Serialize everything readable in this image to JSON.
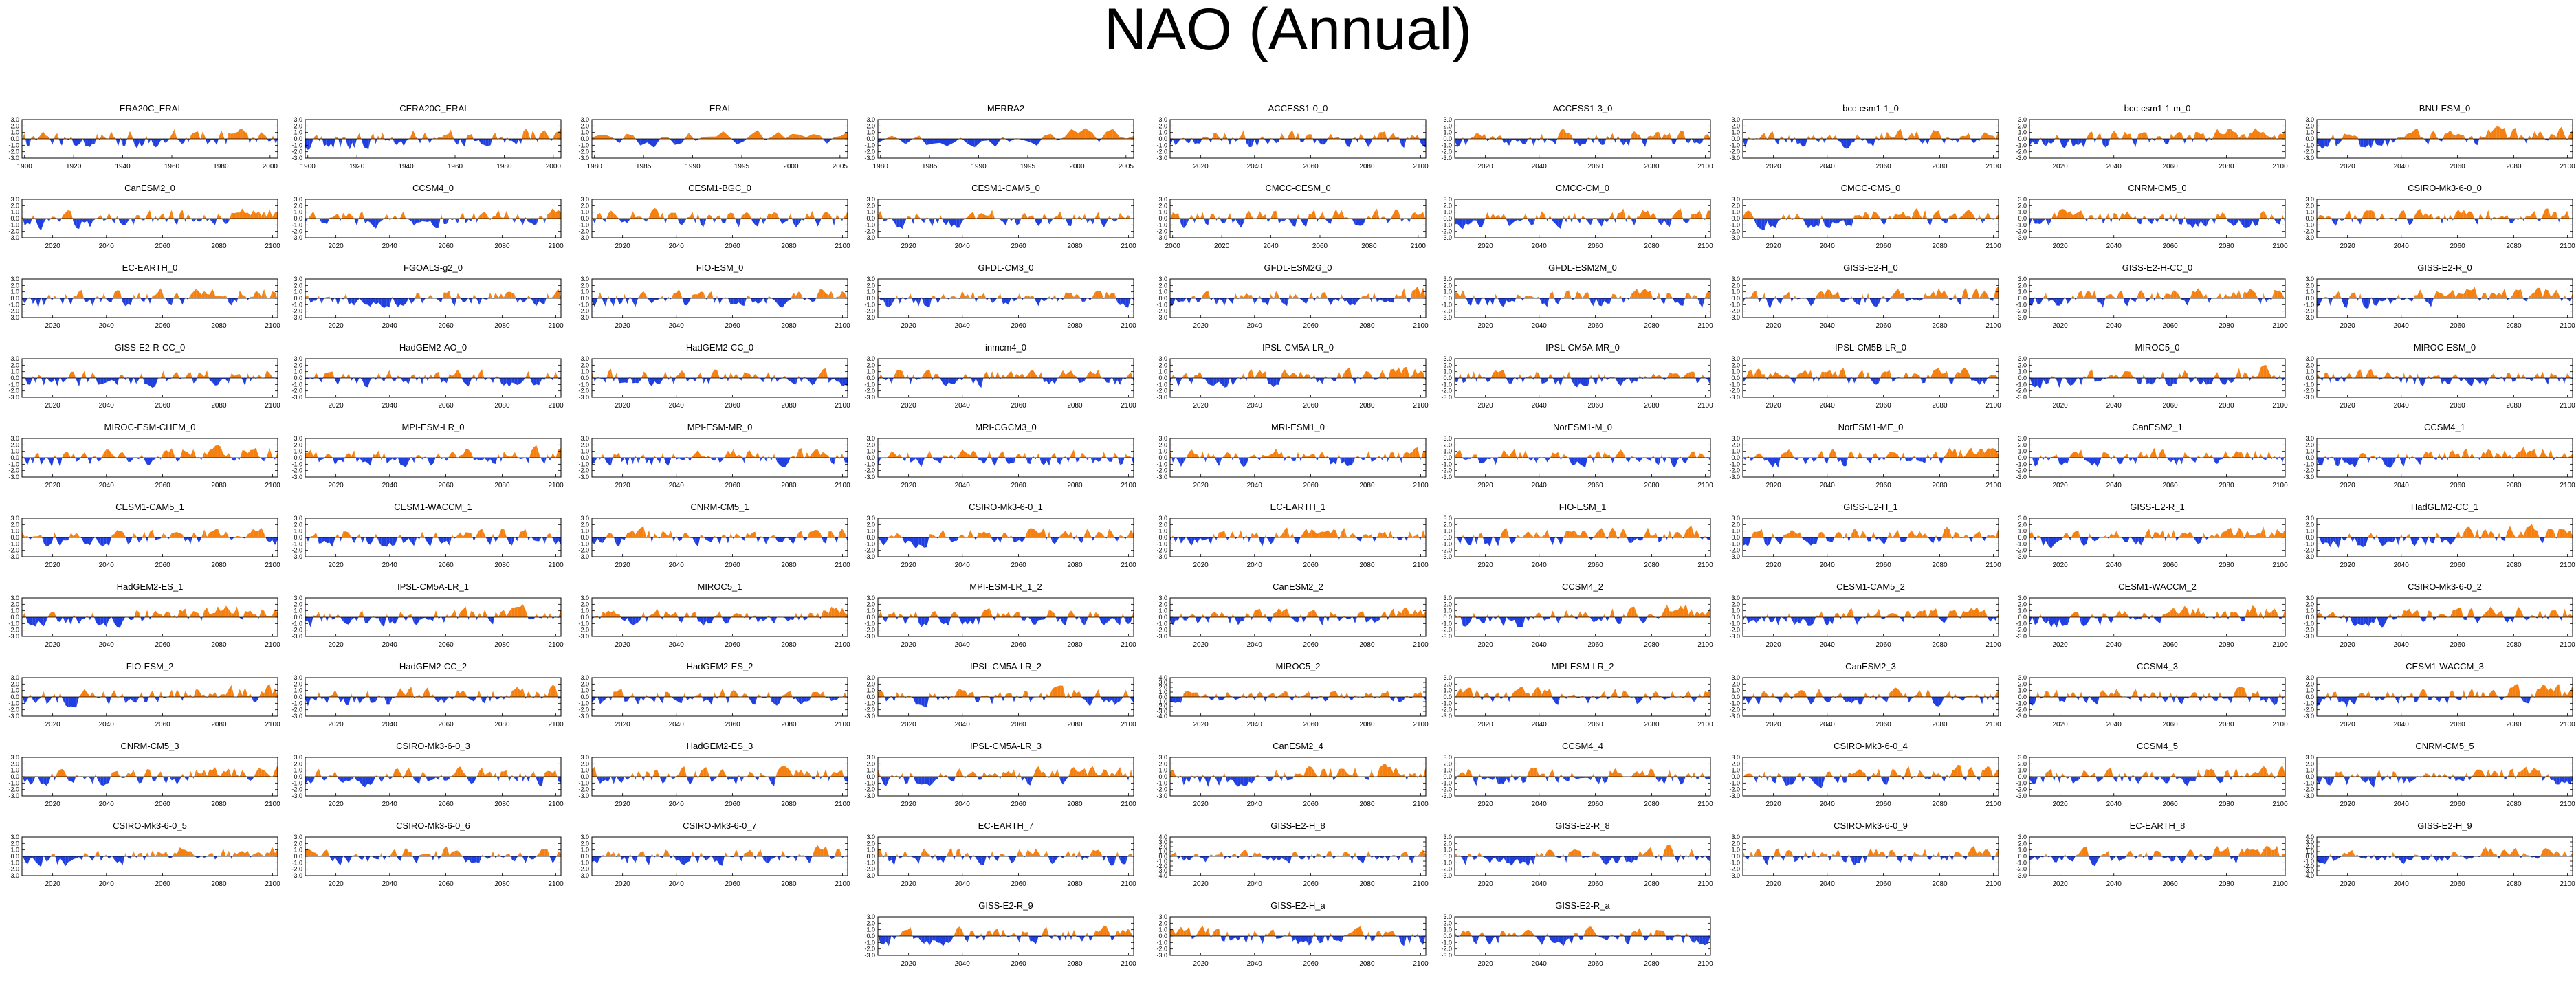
{
  "title": "NAO (Annual)",
  "colors": {
    "positive": "#f5800f",
    "negative": "#1f3fe0",
    "axis": "#000000"
  },
  "chart_data": {
    "type": "area",
    "grid": false,
    "ylim": [
      -3.0,
      3.0
    ],
    "yticks": [
      "3.0",
      "2.0",
      "1.0",
      "0.0",
      "-1.0",
      "-2.0",
      "-3.0"
    ],
    "yticks_wide": [
      "4.0",
      "3.0",
      "2.0",
      "1.0",
      "0.0",
      "-1.0",
      "-2.0",
      "-3.0",
      "-4.0"
    ],
    "xticks_future": [
      "2020",
      "2040",
      "2060",
      "2080",
      "2100"
    ],
    "xticks_future_2000": [
      "2000",
      "2020",
      "2040",
      "2060",
      "2080",
      "2100"
    ],
    "xticks_20c": [
      "1900",
      "1920",
      "1940",
      "1960",
      "1980",
      "2000"
    ],
    "xticks_erai": [
      "1980",
      "1985",
      "1990",
      "1995",
      "2000",
      "2005"
    ],
    "xticks_merra": [
      "1980",
      "1985",
      "1990",
      "1995",
      "2000",
      "2005"
    ],
    "panels": [
      {
        "name": "ERA20C_ERAI",
        "x": "20c"
      },
      {
        "name": "CERA20C_ERAI",
        "x": "20c"
      },
      {
        "name": "ERAI",
        "x": "erai"
      },
      {
        "name": "MERRA2",
        "x": "merra"
      },
      {
        "name": "ACCESS1-0_0",
        "x": "f"
      },
      {
        "name": "ACCESS1-3_0",
        "x": "f"
      },
      {
        "name": "bcc-csm1-1_0",
        "x": "f"
      },
      {
        "name": "bcc-csm1-1-m_0",
        "x": "f"
      },
      {
        "name": "BNU-ESM_0",
        "x": "f"
      },
      {
        "name": "CanESM2_0",
        "x": "f"
      },
      {
        "name": "CCSM4_0",
        "x": "f"
      },
      {
        "name": "CESM1-BGC_0",
        "x": "f"
      },
      {
        "name": "CESM1-CAM5_0",
        "x": "f"
      },
      {
        "name": "CMCC-CESM_0",
        "x": "f2000"
      },
      {
        "name": "CMCC-CM_0",
        "x": "f"
      },
      {
        "name": "CMCC-CMS_0",
        "x": "f"
      },
      {
        "name": "CNRM-CM5_0",
        "x": "f"
      },
      {
        "name": "CSIRO-Mk3-6-0_0",
        "x": "f"
      },
      {
        "name": "EC-EARTH_0",
        "x": "f"
      },
      {
        "name": "FGOALS-g2_0",
        "x": "f"
      },
      {
        "name": "FIO-ESM_0",
        "x": "f"
      },
      {
        "name": "GFDL-CM3_0",
        "x": "f"
      },
      {
        "name": "GFDL-ESM2G_0",
        "x": "f"
      },
      {
        "name": "GFDL-ESM2M_0",
        "x": "f"
      },
      {
        "name": "GISS-E2-H_0",
        "x": "f"
      },
      {
        "name": "GISS-E2-H-CC_0",
        "x": "f"
      },
      {
        "name": "GISS-E2-R_0",
        "x": "f"
      },
      {
        "name": "GISS-E2-R-CC_0",
        "x": "f"
      },
      {
        "name": "HadGEM2-AO_0",
        "x": "f"
      },
      {
        "name": "HadGEM2-CC_0",
        "x": "f"
      },
      {
        "name": "inmcm4_0",
        "x": "f"
      },
      {
        "name": "IPSL-CM5A-LR_0",
        "x": "f"
      },
      {
        "name": "IPSL-CM5A-MR_0",
        "x": "f"
      },
      {
        "name": "IPSL-CM5B-LR_0",
        "x": "f"
      },
      {
        "name": "MIROC5_0",
        "x": "f"
      },
      {
        "name": "MIROC-ESM_0",
        "x": "f"
      },
      {
        "name": "MIROC-ESM-CHEM_0",
        "x": "f"
      },
      {
        "name": "MPI-ESM-LR_0",
        "x": "f"
      },
      {
        "name": "MPI-ESM-MR_0",
        "x": "f"
      },
      {
        "name": "MRI-CGCM3_0",
        "x": "f"
      },
      {
        "name": "MRI-ESM1_0",
        "x": "f"
      },
      {
        "name": "NorESM1-M_0",
        "x": "f"
      },
      {
        "name": "NorESM1-ME_0",
        "x": "f"
      },
      {
        "name": "CanESM2_1",
        "x": "f"
      },
      {
        "name": "CCSM4_1",
        "x": "f"
      },
      {
        "name": "CESM1-CAM5_1",
        "x": "f"
      },
      {
        "name": "CESM1-WACCM_1",
        "x": "f"
      },
      {
        "name": "CNRM-CM5_1",
        "x": "f"
      },
      {
        "name": "CSIRO-Mk3-6-0_1",
        "x": "f"
      },
      {
        "name": "EC-EARTH_1",
        "x": "f"
      },
      {
        "name": "FIO-ESM_1",
        "x": "f"
      },
      {
        "name": "GISS-E2-H_1",
        "x": "f"
      },
      {
        "name": "GISS-E2-R_1",
        "x": "f"
      },
      {
        "name": "HadGEM2-CC_1",
        "x": "f"
      },
      {
        "name": "HadGEM2-ES_1",
        "x": "f"
      },
      {
        "name": "IPSL-CM5A-LR_1",
        "x": "f"
      },
      {
        "name": "MIROC5_1",
        "x": "f"
      },
      {
        "name": "MPI-ESM-LR_1_2",
        "x": "f"
      },
      {
        "name": "CanESM2_2",
        "x": "f"
      },
      {
        "name": "CCSM4_2",
        "x": "f"
      },
      {
        "name": "CESM1-CAM5_2",
        "x": "f"
      },
      {
        "name": "CESM1-WACCM_2",
        "x": "f"
      },
      {
        "name": "CSIRO-Mk3-6-0_2",
        "x": "f"
      },
      {
        "name": "FIO-ESM_2",
        "x": "f"
      },
      {
        "name": "HadGEM2-CC_2",
        "x": "f"
      },
      {
        "name": "HadGEM2-ES_2",
        "x": "f"
      },
      {
        "name": "IPSL-CM5A-LR_2",
        "x": "f"
      },
      {
        "name": "MIROC5_2",
        "x": "f",
        "wide": true
      },
      {
        "name": "MPI-ESM-LR_2",
        "x": "f"
      },
      {
        "name": "CanESM2_3",
        "x": "f"
      },
      {
        "name": "CCSM4_3",
        "x": "f"
      },
      {
        "name": "CESM1-WACCM_3",
        "x": "f"
      },
      {
        "name": "CNRM-CM5_3",
        "x": "f"
      },
      {
        "name": "CSIRO-Mk3-6-0_3",
        "x": "f"
      },
      {
        "name": "HadGEM2-ES_3",
        "x": "f"
      },
      {
        "name": "IPSL-CM5A-LR_3",
        "x": "f"
      },
      {
        "name": "CanESM2_4",
        "x": "f"
      },
      {
        "name": "CCSM4_4",
        "x": "f"
      },
      {
        "name": "CSIRO-Mk3-6-0_4",
        "x": "f"
      },
      {
        "name": "CCSM4_5",
        "x": "f"
      },
      {
        "name": "CNRM-CM5_5",
        "x": "f"
      },
      {
        "name": "CSIRO-Mk3-6-0_5",
        "x": "f"
      },
      {
        "name": "CSIRO-Mk3-6-0_6",
        "x": "f"
      },
      {
        "name": "CSIRO-Mk3-6-0_7",
        "x": "f"
      },
      {
        "name": "EC-EARTH_7",
        "x": "f"
      },
      {
        "name": "GISS-E2-H_8",
        "x": "f",
        "wide": true
      },
      {
        "name": "GISS-E2-R_8",
        "x": "f"
      },
      {
        "name": "CSIRO-Mk3-6-0_9",
        "x": "f"
      },
      {
        "name": "EC-EARTH_8",
        "x": "f"
      },
      {
        "name": "GISS-E2-H_9",
        "x": "f",
        "wide": true
      },
      {
        "name": "GISS-E2-R_9",
        "x": "f"
      },
      {
        "name": "GISS-E2-H_a",
        "x": "f"
      },
      {
        "name": "GISS-E2-R_a",
        "x": "f"
      }
    ]
  }
}
